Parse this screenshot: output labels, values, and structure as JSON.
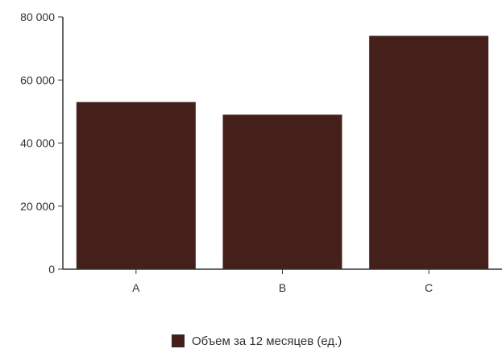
{
  "chart_data": {
    "type": "bar",
    "categories": [
      "A",
      "B",
      "C"
    ],
    "series": [
      {
        "name": "Объем за 12 месяцев (ед.)",
        "values": [
          53000,
          49000,
          74000
        ],
        "color": "#45201a"
      }
    ],
    "ylim": [
      0,
      80000
    ],
    "yticks": [
      0,
      20000,
      40000,
      60000,
      80000
    ],
    "ytick_labels": [
      "0",
      "20 000",
      "40 000",
      "60 000",
      "80 000"
    ],
    "grid": false,
    "legend_position": "bottom",
    "axis_color": "#333333"
  }
}
